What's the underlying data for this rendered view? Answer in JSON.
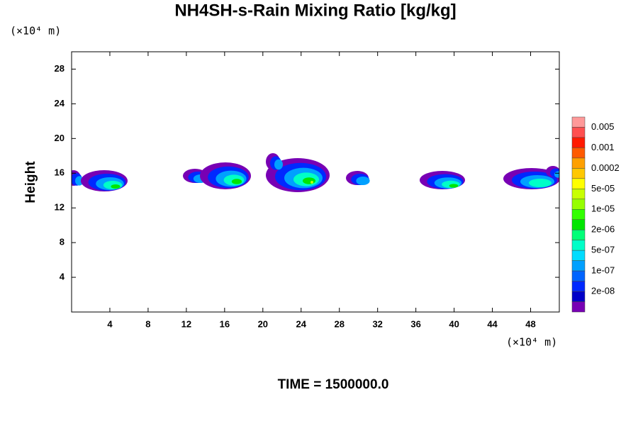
{
  "chart_data": {
    "type": "contour",
    "title": "NH4SH-s-Rain Mixing Ratio [kg/kg]",
    "x_unit": "(×10⁴ m)",
    "y_unit": "(×10⁴ m)",
    "ylabel": "Height",
    "footer": "TIME = 1500000.0",
    "xlim": [
      0,
      51
    ],
    "ylim": [
      0,
      30
    ],
    "xticks": [
      4,
      8,
      12,
      16,
      20,
      24,
      28,
      32,
      36,
      40,
      44,
      48
    ],
    "yticks": [
      4,
      8,
      12,
      16,
      20,
      24,
      28
    ],
    "colorbar": {
      "colors": [
        "#ff9999",
        "#ff5050",
        "#ff1a00",
        "#ff5a00",
        "#ffa000",
        "#ffc800",
        "#ffff00",
        "#c8ff00",
        "#96ff00",
        "#32ff00",
        "#00e600",
        "#00ff78",
        "#00ffc8",
        "#00dcff",
        "#00a0ff",
        "#0064ff",
        "#0028ff",
        "#0000c8",
        "#7800b4"
      ],
      "levels": [
        0.005,
        0.001,
        0.0002,
        {
          "value": 5e-05,
          "label": "5e-05"
        },
        {
          "value": 1e-05,
          "label": "1e-05"
        },
        {
          "value": 2e-06,
          "label": "2e-06"
        },
        {
          "value": 5e-07,
          "label": "5e-07"
        },
        {
          "value": 1e-07,
          "label": "1e-07"
        },
        {
          "value": 2e-08,
          "label": "2e-08"
        }
      ]
    }
  }
}
